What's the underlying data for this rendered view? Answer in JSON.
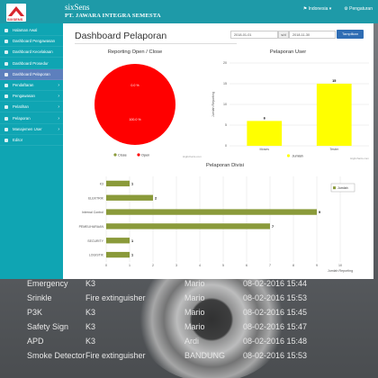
{
  "app": {
    "brand": "sixSens",
    "subtitle": "PT. JAWARA INTEGRA SEMESTA",
    "logo_text": "SIXSENS",
    "lang": "Indonesia",
    "user": "Pengaturan"
  },
  "sidebar": {
    "items": [
      {
        "label": "Halaman Awal",
        "chevron": false
      },
      {
        "label": "Dashboard Pengawasan",
        "chevron": false
      },
      {
        "label": "Dashboard Kecelakaan",
        "chevron": false
      },
      {
        "label": "Dashboard Prosedur",
        "chevron": false
      },
      {
        "label": "Dashboard Pelaporan",
        "chevron": false,
        "active": true
      },
      {
        "label": "Pendaftaran",
        "chevron": true
      },
      {
        "label": "Pengawasan",
        "chevron": true
      },
      {
        "label": "Pelatihan",
        "chevron": true
      },
      {
        "label": "Pelaporan",
        "chevron": true
      },
      {
        "label": "Manajemen User",
        "chevron": true
      },
      {
        "label": "Editor",
        "chevron": false
      }
    ]
  },
  "page": {
    "title": "Dashboard Pelaporan",
    "date_from": "2018-01-01",
    "date_sep": "s/d",
    "date_to": "2018-11-30",
    "show_button": "Tampilkan"
  },
  "charts": {
    "credit": "Highcharts.com",
    "unit_label": "Jumlah"
  },
  "chart_data": [
    {
      "type": "pie",
      "title": "Reporting Open / Close",
      "slices": [
        {
          "name": "Close",
          "value": 0,
          "label": "0.0 %",
          "color": "#8a9a3a"
        },
        {
          "name": "Open",
          "value": 100,
          "label": "100.0 %",
          "color": "#ff0000"
        }
      ]
    },
    {
      "type": "bar",
      "title": "Pelaporan User",
      "categories": [
        "Moses",
        "Tester"
      ],
      "values": [
        6,
        15
      ],
      "ylabel": "Jumlah Reporting",
      "ylim": [
        0,
        20
      ],
      "yticks": [
        0,
        5,
        10,
        15,
        20
      ],
      "legend": "Jumlah",
      "color": "#ffff00"
    },
    {
      "type": "bar",
      "orientation": "horizontal",
      "title": "Pelaporan Divisi",
      "categories": [
        "K3",
        "ELEKTRIK",
        "Internal Control",
        "PEMELIHARAAN",
        "SECURITY",
        "LOGISTIK"
      ],
      "values": [
        1,
        2,
        9,
        7,
        1,
        1
      ],
      "xlabel": "Jumlah Reporting",
      "xlim": [
        0,
        10
      ],
      "xticks": [
        0,
        1,
        2,
        3,
        4,
        5,
        6,
        7,
        8,
        9,
        10
      ],
      "legend": "Jumlah",
      "color": "#8a9a3a"
    }
  ],
  "background": {
    "rows": [
      {
        "c1": "Emergency",
        "c2": "K3",
        "c3": "Mario",
        "c4": "08-02-2016 15:44"
      },
      {
        "c1": "Srinkle",
        "c2": "Fire extinguisher",
        "c3": "Mario",
        "c4": "08-02-2016 15:53"
      },
      {
        "c1": "P3K",
        "c2": "K3",
        "c3": "Mario",
        "c4": "08-02-2016 15:45"
      },
      {
        "c1": "Safety Sign",
        "c2": "K3",
        "c3": "Mario",
        "c4": "08-02-2016 15:47"
      },
      {
        "c1": "APD",
        "c2": "K3",
        "c3": "Ardi",
        "c4": "08-02-2016 15:48"
      },
      {
        "c1": "Smoke Detector",
        "c2": "Fire extinguisher",
        "c3": "BANDUNG",
        "c4": "08-02-2016 15:53"
      }
    ]
  }
}
